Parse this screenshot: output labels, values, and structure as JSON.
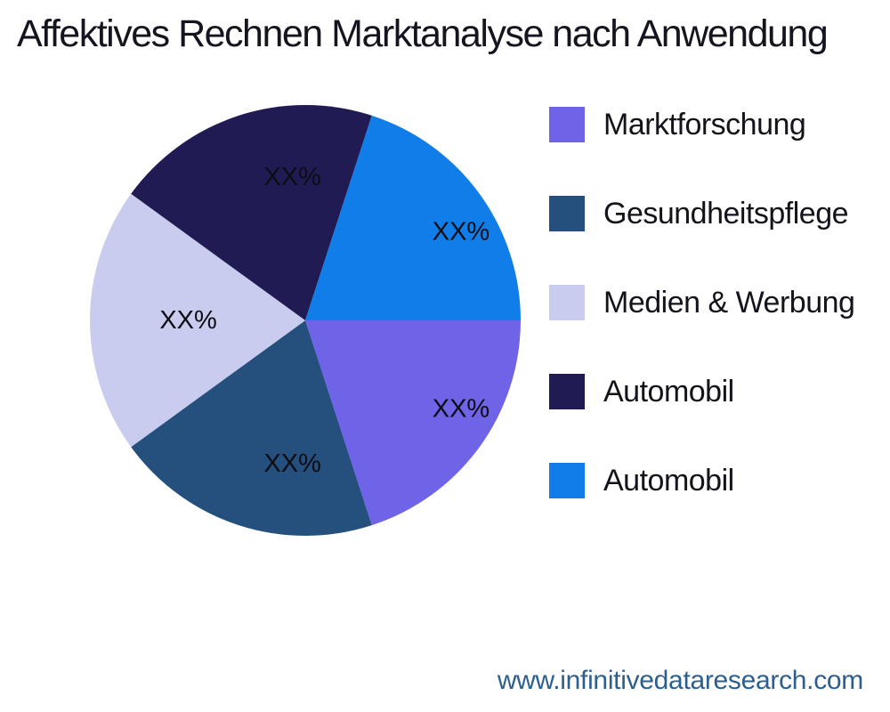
{
  "colors": {
    "background": "#ffffff",
    "title_text": "#15151f",
    "legend_text": "#13131c",
    "slice_label_text": "#0d0d14",
    "footer_link": "#2d5f8d"
  },
  "footer": {
    "website": "www.infinitivedataresearch.com"
  },
  "chart_data": {
    "type": "pie",
    "title": "Affektives Rechnen Marktanalyse nach Anwendung",
    "categories": [
      "Marktforschung",
      "Gesundheitspflege",
      "Medien & Werbung",
      "Automobil",
      "Automobil"
    ],
    "values": [
      20,
      20,
      20,
      20,
      20
    ],
    "slice_labels": [
      "XX%",
      "XX%",
      "XX%",
      "XX%",
      "XX%"
    ],
    "colors": [
      "#6F63E8",
      "#254F7D",
      "#C9CCEE",
      "#211B54",
      "#117DE8"
    ],
    "start_angle_deg": 0,
    "direction": "clockwise",
    "legend_position": "right",
    "legend": [
      {
        "label": "Marktforschung",
        "color": "#6F63E8"
      },
      {
        "label": "Gesundheitspflege",
        "color": "#254F7D"
      },
      {
        "label": "Medien & Werbung",
        "color": "#C9CCEE"
      },
      {
        "label": "Automobil",
        "color": "#211B54"
      },
      {
        "label": "Automobil",
        "color": "#117DE8"
      }
    ]
  }
}
